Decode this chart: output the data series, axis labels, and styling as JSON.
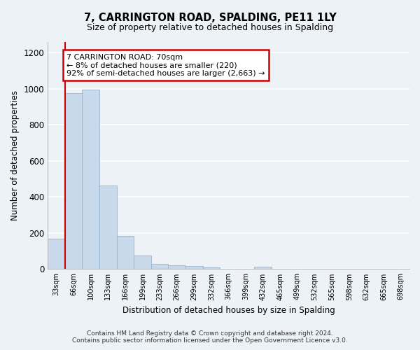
{
  "title": "7, CARRINGTON ROAD, SPALDING, PE11 1LY",
  "subtitle": "Size of property relative to detached houses in Spalding",
  "xlabel": "Distribution of detached houses by size in Spalding",
  "ylabel": "Number of detached properties",
  "bar_color": "#c8d9eb",
  "bar_edgecolor": "#9ab5cf",
  "categories": [
    "33sqm",
    "66sqm",
    "100sqm",
    "133sqm",
    "166sqm",
    "199sqm",
    "233sqm",
    "266sqm",
    "299sqm",
    "332sqm",
    "366sqm",
    "399sqm",
    "432sqm",
    "465sqm",
    "499sqm",
    "532sqm",
    "565sqm",
    "598sqm",
    "632sqm",
    "665sqm",
    "698sqm"
  ],
  "values": [
    170,
    975,
    995,
    465,
    185,
    75,
    28,
    22,
    18,
    10,
    0,
    0,
    15,
    0,
    0,
    0,
    0,
    0,
    0,
    0,
    0
  ],
  "ylim": [
    0,
    1260
  ],
  "yticks": [
    0,
    200,
    400,
    600,
    800,
    1000,
    1200
  ],
  "vline_x": 0.5,
  "vline_color": "#cc0000",
  "annotation_text": "7 CARRINGTON ROAD: 70sqm\n← 8% of detached houses are smaller (220)\n92% of semi-detached houses are larger (2,663) →",
  "annotation_box_color": "#ffffff",
  "annotation_box_edgecolor": "#cc0000",
  "footer": "Contains HM Land Registry data © Crown copyright and database right 2024.\nContains public sector information licensed under the Open Government Licence v3.0.",
  "background_color": "#edf2f7",
  "grid_color": "#ffffff"
}
